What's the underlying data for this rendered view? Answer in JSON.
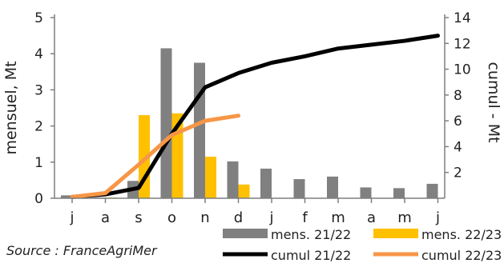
{
  "chart_data": {
    "type": "bar",
    "categories": [
      "j",
      "a",
      "s",
      "o",
      "n",
      "d",
      "j",
      "f",
      "m",
      "a",
      "m",
      "j"
    ],
    "bar_series": [
      {
        "name": "mens. 21/22",
        "color": "#808080",
        "values": [
          0.08,
          0.02,
          0.48,
          4.15,
          3.75,
          1.02,
          0.82,
          0.53,
          0.6,
          0.3,
          0.28,
          0.4
        ]
      },
      {
        "name": "mens. 22/23",
        "color": "#ffc000",
        "values": [
          0.0,
          0.02,
          2.3,
          2.35,
          1.15,
          0.38
        ]
      }
    ],
    "line_series": [
      {
        "name": "cumul 21/22",
        "color": "#000000",
        "values": [
          0.1,
          0.3,
          0.8,
          5.0,
          8.6,
          9.7,
          10.5,
          11.0,
          11.6,
          11.9,
          12.2,
          12.6
        ]
      },
      {
        "name": "cumul 22/23",
        "color": "#f79646",
        "values": [
          0.1,
          0.4,
          2.6,
          4.9,
          6.0,
          6.4
        ]
      }
    ],
    "y_left": {
      "label": "mensuel, Mt",
      "range": [
        0,
        5
      ],
      "ticks": [
        "0",
        "1",
        "2",
        "3",
        "4",
        "5"
      ]
    },
    "y_right": {
      "label": "cumul - Mt",
      "range": [
        0,
        14
      ],
      "ticks": [
        "2",
        "4",
        "6",
        "8",
        "10",
        "12",
        "14"
      ]
    },
    "grid": false,
    "legend_position": "bottom-right"
  },
  "source": "Source : FranceAgriMer"
}
